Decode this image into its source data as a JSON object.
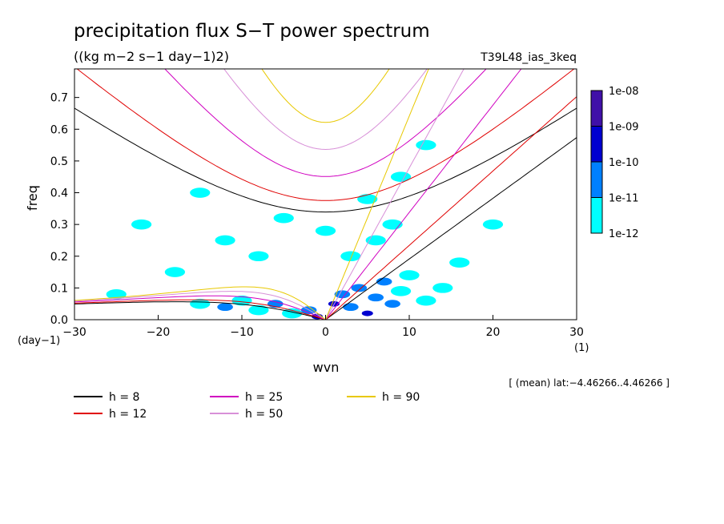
{
  "chart_data": {
    "type": "heatmap",
    "title": "precipitation flux S−T power spectrum",
    "subtitle": "((kg m−2 s−1 day−1)2)",
    "run_label": "T39L48_ias_3keq",
    "xlabel": "wvn",
    "ylabel": "freq",
    "x_unit": "(1)",
    "y_unit": "(day−1)",
    "xlim": [
      -30,
      30
    ],
    "ylim": [
      0,
      0.79
    ],
    "x_ticks": [
      -30,
      -20,
      -10,
      0,
      10,
      20,
      30
    ],
    "x_tick_labels": [
      "−30",
      "−20",
      "−10",
      "0",
      "10",
      "20",
      "30"
    ],
    "y_ticks": [
      0,
      0.1,
      0.2,
      0.3,
      0.4,
      0.5,
      0.6,
      0.7
    ],
    "y_tick_labels": [
      "0.0",
      "0.1",
      "0.2",
      "0.3",
      "0.4",
      "0.5",
      "0.6",
      "0.7"
    ],
    "region_note": "[ (mean) lat:−4.46266..4.46266 ]",
    "colorbar": {
      "levels": [
        "1e-12",
        "1e-11",
        "1e-10",
        "1e-09",
        "1e-08"
      ],
      "colors": [
        "#00ffff",
        "#0080ff",
        "#0000d0",
        "#4010a8"
      ]
    },
    "dispersion_legend": [
      {
        "label": "h =  8",
        "h": 8,
        "color": "#000000"
      },
      {
        "label": "h = 12",
        "h": 12,
        "color": "#e00000"
      },
      {
        "label": "h = 25",
        "h": 25,
        "color": "#d000c0"
      },
      {
        "label": "h = 50",
        "h": 50,
        "color": "#d890d8"
      },
      {
        "label": "h = 90",
        "h": 90,
        "color": "#e8c800"
      }
    ],
    "spectrum_blobs": [
      {
        "x": -15,
        "y": 0.05,
        "level": 0
      },
      {
        "x": -12,
        "y": 0.04,
        "level": 1
      },
      {
        "x": -10,
        "y": 0.06,
        "level": 0
      },
      {
        "x": -8,
        "y": 0.03,
        "level": 0
      },
      {
        "x": -6,
        "y": 0.05,
        "level": 1
      },
      {
        "x": -4,
        "y": 0.02,
        "level": 0
      },
      {
        "x": -2,
        "y": 0.03,
        "level": 1
      },
      {
        "x": -1,
        "y": 0.01,
        "level": 2
      },
      {
        "x": 1,
        "y": 0.05,
        "level": 2
      },
      {
        "x": 2,
        "y": 0.08,
        "level": 1
      },
      {
        "x": 3,
        "y": 0.04,
        "level": 1
      },
      {
        "x": 4,
        "y": 0.1,
        "level": 1
      },
      {
        "x": 5,
        "y": 0.02,
        "level": 2
      },
      {
        "x": 6,
        "y": 0.07,
        "level": 1
      },
      {
        "x": 7,
        "y": 0.12,
        "level": 1
      },
      {
        "x": 8,
        "y": 0.05,
        "level": 1
      },
      {
        "x": 9,
        "y": 0.09,
        "level": 0
      },
      {
        "x": 10,
        "y": 0.14,
        "level": 0
      },
      {
        "x": 12,
        "y": 0.06,
        "level": 0
      },
      {
        "x": 14,
        "y": 0.1,
        "level": 0
      },
      {
        "x": 16,
        "y": 0.18,
        "level": 0
      },
      {
        "x": 3,
        "y": 0.2,
        "level": 0
      },
      {
        "x": 6,
        "y": 0.25,
        "level": 0
      },
      {
        "x": 8,
        "y": 0.3,
        "level": 0
      },
      {
        "x": 5,
        "y": 0.38,
        "level": 0
      },
      {
        "x": 9,
        "y": 0.45,
        "level": 0
      },
      {
        "x": -8,
        "y": 0.2,
        "level": 0
      },
      {
        "x": -12,
        "y": 0.25,
        "level": 0
      },
      {
        "x": -18,
        "y": 0.15,
        "level": 0
      },
      {
        "x": -22,
        "y": 0.3,
        "level": 0
      },
      {
        "x": -5,
        "y": 0.32,
        "level": 0
      },
      {
        "x": 0,
        "y": 0.28,
        "level": 0
      },
      {
        "x": -15,
        "y": 0.4,
        "level": 0
      },
      {
        "x": 12,
        "y": 0.55,
        "level": 0
      },
      {
        "x": -25,
        "y": 0.08,
        "level": 0
      },
      {
        "x": 20,
        "y": 0.3,
        "level": 0
      }
    ]
  }
}
